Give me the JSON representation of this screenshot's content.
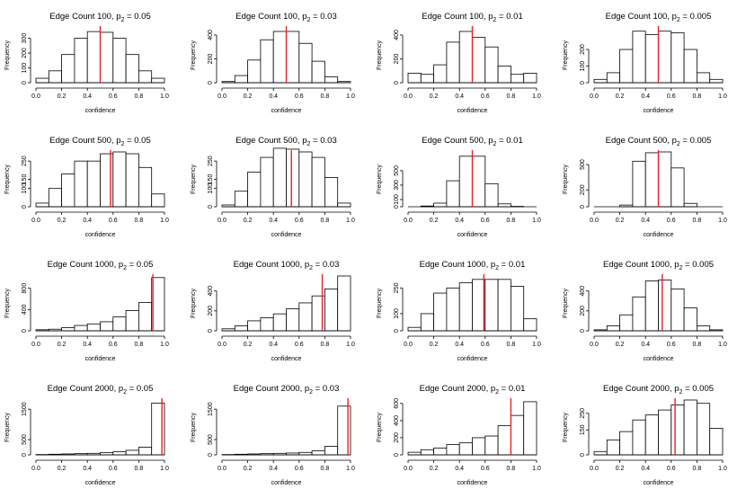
{
  "chart_data": [
    {
      "type": "bar",
      "title_main": "Edge Count 100, p",
      "title_sub": "2",
      "title_tail": " = 0.05",
      "xlabel": "confidence",
      "ylabel": "Frequency",
      "xlim": [
        0,
        1
      ],
      "xticks": [
        "0.0",
        "0.2",
        "0.4",
        "0.6",
        "0.8",
        "1.0"
      ],
      "ylim": [
        0,
        370
      ],
      "yticks": [
        0,
        100,
        200,
        300
      ],
      "bin_width": 0.1,
      "values": [
        30,
        80,
        190,
        300,
        345,
        340,
        300,
        190,
        80,
        30
      ],
      "mean_line": 0.5,
      "mean_color": "#e8202a"
    },
    {
      "type": "bar",
      "title_main": "Edge Count 100, p",
      "title_sub": "2",
      "title_tail": " = 0.03",
      "xlabel": "confidence",
      "ylabel": "Frequency",
      "xlim": [
        0,
        1
      ],
      "xticks": [
        "0.0",
        "0.2",
        "0.4",
        "0.6",
        "0.8",
        "1.0"
      ],
      "ylim": [
        0,
        460
      ],
      "yticks": [
        0,
        200,
        400
      ],
      "bin_width": 0.1,
      "values": [
        10,
        60,
        190,
        360,
        430,
        430,
        330,
        180,
        50,
        10
      ],
      "mean_line": 0.5,
      "mean_color": "#e8202a"
    },
    {
      "type": "bar",
      "title_main": "Edge Count 100, p",
      "title_sub": "2",
      "title_tail": " = 0.01",
      "xlabel": "confidence",
      "ylabel": "Frequency",
      "xlim": [
        0,
        1
      ],
      "xticks": [
        "0.0",
        "0.2",
        "0.4",
        "0.6",
        "0.8",
        "1.0"
      ],
      "ylim": [
        0,
        460
      ],
      "yticks": [
        0,
        200,
        400
      ],
      "bin_width": 0.1,
      "values": [
        80,
        70,
        150,
        340,
        430,
        380,
        300,
        140,
        70,
        80
      ],
      "mean_line": 0.5,
      "mean_color": "#e8202a"
    },
    {
      "type": "bar",
      "title_main": "Edge Count 100, p",
      "title_sub": "2",
      "title_tail": " = 0.005",
      "xlabel": "confidence",
      "ylabel": "Frequency",
      "xlim": [
        0,
        1
      ],
      "xticks": [
        "0.0",
        "0.2",
        "0.4",
        "0.6",
        "0.8",
        "1.0"
      ],
      "ylim": [
        0,
        330
      ],
      "yticks": [
        0,
        100,
        200
      ],
      "bin_width": 0.1,
      "values": [
        20,
        60,
        200,
        310,
        290,
        310,
        300,
        200,
        60,
        20
      ],
      "mean_line": 0.5,
      "mean_color": "#e8202a"
    },
    {
      "type": "bar",
      "title_main": "Edge Count 500, p",
      "title_sub": "2",
      "title_tail": " = 0.05",
      "xlabel": "confidence",
      "ylabel": "Frequency",
      "xlim": [
        0,
        1
      ],
      "xticks": [
        "0.0",
        "0.2",
        "0.4",
        "0.6",
        "0.8",
        "1.0"
      ],
      "ylim": [
        0,
        300
      ],
      "yticks": [
        0,
        100,
        150,
        250
      ],
      "ytick_labels": [
        "0",
        "100",
        "150",
        "250"
      ],
      "bin_width": 0.1,
      "values": [
        20,
        100,
        180,
        250,
        250,
        290,
        300,
        290,
        215,
        70
      ],
      "mean_line": 0.58,
      "mean_color": "#e8202a"
    },
    {
      "type": "bar",
      "title_main": "Edge Count 500, p",
      "title_sub": "2",
      "title_tail": " = 0.03",
      "xlabel": "confidence",
      "ylabel": "Frequency",
      "xlim": [
        0,
        1
      ],
      "xticks": [
        "0.0",
        "0.2",
        "0.4",
        "0.6",
        "0.8",
        "1.0"
      ],
      "ylim": [
        0,
        300
      ],
      "yticks": [
        0,
        100,
        150,
        250
      ],
      "ytick_labels": [
        "0",
        "100",
        "150",
        "250"
      ],
      "bin_width": 0.1,
      "values": [
        10,
        85,
        190,
        270,
        320,
        315,
        300,
        270,
        160,
        20
      ],
      "mean_line": 0.54,
      "mean_color": "#e8202a"
    },
    {
      "type": "bar",
      "title_main": "Edge Count 500, p",
      "title_sub": "2",
      "title_tail": " = 0.01",
      "xlabel": "confidence",
      "ylabel": "Frequency",
      "xlim": [
        0,
        1
      ],
      "xticks": [
        "0.0",
        "0.2",
        "0.4",
        "0.6",
        "0.8",
        "1.0"
      ],
      "ylim": [
        0,
        760
      ],
      "yticks": [
        0,
        100,
        300,
        500
      ],
      "ytick_labels": [
        "0",
        "100",
        "300",
        "500"
      ],
      "bin_width": 0.1,
      "values": [
        0,
        10,
        50,
        360,
        700,
        700,
        320,
        40,
        5,
        0
      ],
      "mean_line": 0.5,
      "mean_color": "#e8202a"
    },
    {
      "type": "bar",
      "title_main": "Edge Count 500, p",
      "title_sub": "2",
      "title_tail": " = 0.005",
      "xlabel": "confidence",
      "ylabel": "Frequency",
      "xlim": [
        0,
        1
      ],
      "xticks": [
        "0.0",
        "0.2",
        "0.4",
        "0.6",
        "0.8",
        "1.0"
      ],
      "ylim": [
        0,
        650
      ],
      "yticks": [
        0,
        200,
        500
      ],
      "ytick_labels": [
        "0",
        "200",
        "500"
      ],
      "bin_width": 0.1,
      "values": [
        0,
        0,
        20,
        540,
        640,
        650,
        460,
        40,
        0,
        0
      ],
      "mean_line": 0.5,
      "mean_color": "#e8202a"
    },
    {
      "type": "bar",
      "title_main": "Edge Count 1000, p",
      "title_sub": "2",
      "title_tail": " = 0.05",
      "xlabel": "confidence",
      "ylabel": "Frequency",
      "xlim": [
        0,
        1
      ],
      "xticks": [
        "0.0",
        "0.2",
        "0.4",
        "0.6",
        "0.8",
        "1.0"
      ],
      "ylim": [
        0,
        1030
      ],
      "yticks": [
        0,
        400,
        800
      ],
      "bin_width": 0.1,
      "values": [
        20,
        30,
        60,
        100,
        130,
        170,
        260,
        380,
        530,
        1000
      ],
      "mean_line": 0.91,
      "mean_color": "#e8202a"
    },
    {
      "type": "bar",
      "title_main": "Edge Count 1000, p",
      "title_sub": "2",
      "title_tail": " = 0.03",
      "xlabel": "confidence",
      "ylabel": "Frequency",
      "xlim": [
        0,
        1
      ],
      "xticks": [
        "0.0",
        "0.2",
        "0.4",
        "0.6",
        "0.8",
        "1.0"
      ],
      "ylim": [
        0,
        550
      ],
      "yticks": [
        0,
        200,
        400
      ],
      "bin_width": 0.1,
      "values": [
        20,
        50,
        100,
        130,
        170,
        220,
        280,
        350,
        420,
        550
      ],
      "mean_line": 0.78,
      "mean_color": "#e8202a"
    },
    {
      "type": "bar",
      "title_main": "Edge Count 1000, p",
      "title_sub": "2",
      "title_tail": " = 0.01",
      "xlabel": "confidence",
      "ylabel": "Frequency",
      "xlim": [
        0,
        1
      ],
      "xticks": [
        "0.0",
        "0.2",
        "0.4",
        "0.6",
        "0.8",
        "1.0"
      ],
      "ylim": [
        0,
        320
      ],
      "yticks": [
        0,
        100,
        250
      ],
      "ytick_labels": [
        "0",
        "100",
        "250"
      ],
      "bin_width": 0.1,
      "values": [
        20,
        100,
        220,
        250,
        280,
        300,
        300,
        300,
        260,
        70
      ],
      "mean_line": 0.59,
      "mean_color": "#e8202a"
    },
    {
      "type": "bar",
      "title_main": "Edge Count 1000, p",
      "title_sub": "2",
      "title_tail": " = 0.005",
      "xlabel": "confidence",
      "ylabel": "Frequency",
      "xlim": [
        0,
        1
      ],
      "xticks": [
        "0.0",
        "0.2",
        "0.4",
        "0.6",
        "0.8",
        "1.0"
      ],
      "ylim": [
        0,
        550
      ],
      "yticks": [
        0,
        200,
        400
      ],
      "bin_width": 0.1,
      "values": [
        10,
        50,
        160,
        340,
        500,
        510,
        420,
        230,
        50,
        10
      ],
      "mean_line": 0.53,
      "mean_color": "#e8202a"
    },
    {
      "type": "bar",
      "title_main": "Edge Count 2000, p",
      "title_sub": "2",
      "title_tail": " = 0.05",
      "xlabel": "confidence",
      "ylabel": "Frequency",
      "xlim": [
        0,
        1
      ],
      "xticks": [
        "0.0",
        "0.2",
        "0.4",
        "0.6",
        "0.8",
        "1.0"
      ],
      "ylim": [
        0,
        1800
      ],
      "yticks": [
        0,
        500,
        1500
      ],
      "bin_width": 0.1,
      "values": [
        10,
        20,
        30,
        40,
        50,
        70,
        100,
        150,
        250,
        1700
      ],
      "mean_line": 0.98,
      "mean_color": "#e8202a"
    },
    {
      "type": "bar",
      "title_main": "Edge Count 2000, p",
      "title_sub": "2",
      "title_tail": " = 0.03",
      "xlabel": "confidence",
      "ylabel": "Frequency",
      "xlim": [
        0,
        1
      ],
      "xticks": [
        "0.0",
        "0.2",
        "0.4",
        "0.6",
        "0.8",
        "1.0"
      ],
      "ylim": [
        0,
        1800
      ],
      "yticks": [
        0,
        500,
        1500
      ],
      "bin_width": 0.1,
      "values": [
        10,
        20,
        30,
        40,
        50,
        60,
        80,
        130,
        280,
        1600
      ],
      "mean_line": 0.98,
      "mean_color": "#e8202a"
    },
    {
      "type": "bar",
      "title_main": "Edge Count 2000, p",
      "title_sub": "2",
      "title_tail": " = 0.01",
      "xlabel": "confidence",
      "ylabel": "Frequency",
      "xlim": [
        0,
        1
      ],
      "xticks": [
        "0.0",
        "0.2",
        "0.4",
        "0.6",
        "0.8",
        "1.0"
      ],
      "ylim": [
        0,
        640
      ],
      "yticks": [
        0,
        200,
        400,
        600
      ],
      "bin_width": 0.1,
      "values": [
        30,
        60,
        80,
        120,
        140,
        200,
        220,
        340,
        460,
        620
      ],
      "mean_line": 0.8,
      "mean_color": "#e8202a"
    },
    {
      "type": "bar",
      "title_main": "Edge Count 2000, p",
      "title_sub": "2",
      "title_tail": " = 0.005",
      "xlabel": "confidence",
      "ylabel": "Frequency",
      "xlim": [
        0,
        1
      ],
      "xticks": [
        "0.0",
        "0.2",
        "0.4",
        "0.6",
        "0.8",
        "1.0"
      ],
      "ylim": [
        0,
        330
      ],
      "yticks": [
        0,
        150,
        250
      ],
      "ytick_labels": [
        "0",
        "150",
        "250"
      ],
      "bin_width": 0.1,
      "values": [
        20,
        90,
        140,
        210,
        240,
        270,
        300,
        330,
        310,
        160
      ],
      "mean_line": 0.63,
      "mean_color": "#e8202a"
    }
  ]
}
